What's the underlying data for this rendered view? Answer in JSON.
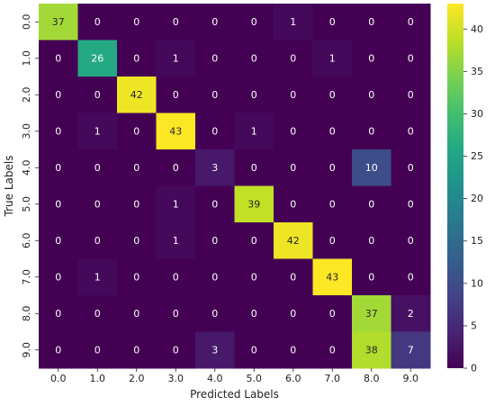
{
  "chart_data": {
    "type": "heatmap",
    "title": "",
    "xlabel": "Predicted Labels",
    "ylabel": "True Labels",
    "x_categories": [
      "0.0",
      "1.0",
      "2.0",
      "3.0",
      "4.0",
      "5.0",
      "6.0",
      "7.0",
      "8.0",
      "9.0"
    ],
    "y_categories": [
      "0.0",
      "1.0",
      "2.0",
      "3.0",
      "4.0",
      "5.0",
      "6.0",
      "7.0",
      "8.0",
      "9.0"
    ],
    "values": [
      [
        37,
        0,
        0,
        0,
        0,
        0,
        1,
        0,
        0,
        0
      ],
      [
        0,
        26,
        0,
        1,
        0,
        0,
        0,
        1,
        0,
        0
      ],
      [
        0,
        0,
        42,
        0,
        0,
        0,
        0,
        0,
        0,
        0
      ],
      [
        0,
        1,
        0,
        43,
        0,
        1,
        0,
        0,
        0,
        0
      ],
      [
        0,
        0,
        0,
        0,
        3,
        0,
        0,
        0,
        10,
        0
      ],
      [
        0,
        0,
        0,
        1,
        0,
        39,
        0,
        0,
        0,
        0
      ],
      [
        0,
        0,
        0,
        1,
        0,
        0,
        42,
        0,
        0,
        0
      ],
      [
        0,
        1,
        0,
        0,
        0,
        0,
        0,
        43,
        0,
        0
      ],
      [
        0,
        0,
        0,
        0,
        0,
        0,
        0,
        0,
        37,
        2
      ],
      [
        0,
        0,
        0,
        0,
        3,
        0,
        0,
        0,
        38,
        7
      ]
    ],
    "colormap": "viridis",
    "colorbar": {
      "range": [
        0,
        43
      ],
      "ticks": [
        0,
        5,
        10,
        15,
        20,
        25,
        30,
        35,
        40
      ]
    },
    "annotated": true,
    "legend": "colorbar-right",
    "grid": false
  }
}
